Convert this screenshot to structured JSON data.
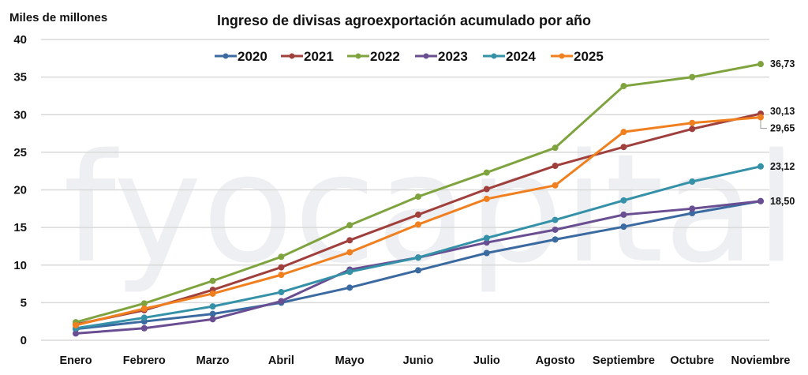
{
  "chart_data": {
    "type": "line",
    "title": "Ingreso de divisas agroexportación acumulado por año",
    "ylabel": "Miles de millones",
    "xlabel": "",
    "ylim": [
      0,
      40
    ],
    "yticks": [
      0,
      5,
      10,
      15,
      20,
      25,
      30,
      35,
      40
    ],
    "grid": true,
    "legend_position": "top-center",
    "watermark": "fyocapital",
    "categories": [
      "Enero",
      "Febrero",
      "Marzo",
      "Abril",
      "Mayo",
      "Junio",
      "Julio",
      "Agosto",
      "Septiembre",
      "Octubre",
      "Noviembre"
    ],
    "series": [
      {
        "name": "2020",
        "color": "#3b6aa0",
        "values": [
          1.5,
          2.5,
          3.5,
          5.0,
          7.0,
          9.3,
          11.6,
          13.4,
          15.1,
          16.9,
          18.5
        ],
        "end_label": "18,50"
      },
      {
        "name": "2021",
        "color": "#a0403d",
        "values": [
          2.1,
          4.0,
          6.7,
          9.7,
          13.3,
          16.7,
          20.1,
          23.2,
          25.7,
          28.1,
          30.13
        ],
        "end_label": "30,13"
      },
      {
        "name": "2022",
        "color": "#7fa43f",
        "values": [
          2.4,
          4.9,
          7.9,
          11.1,
          15.3,
          19.1,
          22.3,
          25.6,
          33.8,
          35.0,
          36.73
        ],
        "end_label": "36,73"
      },
      {
        "name": "2023",
        "color": "#6a4e92",
        "values": [
          0.9,
          1.6,
          2.8,
          5.2,
          9.4,
          11.0,
          13.0,
          14.7,
          16.7,
          17.5,
          18.5
        ],
        "end_label": null
      },
      {
        "name": "2024",
        "color": "#3591a8",
        "values": [
          1.6,
          3.0,
          4.5,
          6.4,
          9.1,
          11.0,
          13.6,
          16.0,
          18.6,
          21.1,
          23.12
        ],
        "end_label": "23,12"
      },
      {
        "name": "2025",
        "color": "#f0801f",
        "values": [
          2.0,
          4.2,
          6.2,
          8.7,
          11.7,
          15.4,
          18.8,
          20.6,
          27.7,
          28.9,
          29.65
        ],
        "end_label": "29,65"
      }
    ],
    "gridline_color": "#d9d9d9"
  }
}
